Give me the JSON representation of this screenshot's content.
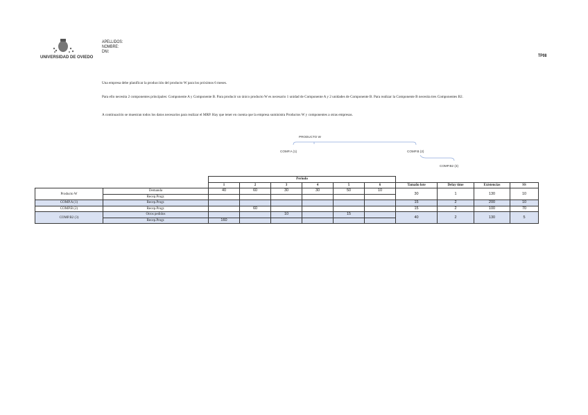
{
  "header": {
    "university": "UNIVERSIDAD DE OVIEDO",
    "apellidos": "APELLIDOS:",
    "nombre": "NOMBRE:",
    "dni": "DNI:",
    "code": "TP08"
  },
  "paragraphs": [
    "Una empresa debe planificar la producción del producto W para los próximos 6 meses.",
    "Para ello necesita 2 componentes principales: Componente A y Componente B. Para producir un único producto W es necesario 1 unidad de Componente A y 2 unidades de Componente B. Para realizar  la Componente B necesita tres Componentes B2.",
    "A continuación se muestran todos los datos necesarios para realizar el MRP. Hay que tener en cuenta que la empresa suministra Productos W y componentes a otras empresas."
  ],
  "tree": {
    "root": "PRODUCTO W",
    "a": "COMP.A (1)",
    "b": "COMP.B (2)",
    "b2": "COMP.B2 (3)"
  },
  "table": {
    "periodo": "Periodo",
    "periods": [
      "1",
      "2",
      "3",
      "4",
      "5",
      "6"
    ],
    "extra_headers": [
      "Tamaño lote",
      "Delay time",
      "Existencias",
      "SS"
    ],
    "rows": [
      {
        "item": "Producto W",
        "sub": [
          {
            "label": "Demanda",
            "values": [
              "40",
              "60",
              "30",
              "30",
              "50",
              "10"
            ]
          },
          {
            "label": "Recep.Progr.",
            "values": [
              "",
              "",
              "",
              "",
              "",
              ""
            ]
          }
        ],
        "extra": [
          "30",
          "1",
          "130",
          "10"
        ]
      },
      {
        "item": "COMP.A (1)",
        "sub": [
          {
            "label": "Recep.Progr.",
            "values": [
              "",
              "",
              "",
              "",
              "",
              ""
            ]
          }
        ],
        "extra": [
          "15",
          "2",
          "200",
          "10"
        ]
      },
      {
        "item": "COMP.B (2)",
        "sub": [
          {
            "label": "Recep.Progr.",
            "values": [
              "",
              "60",
              "",
              "",
              "",
              ""
            ]
          }
        ],
        "extra": [
          "15",
          "2",
          "100",
          "70"
        ]
      },
      {
        "item": "COMP.B2 (3)",
        "sub": [
          {
            "label": "Otros pedidos",
            "values": [
              "",
              "",
              "10",
              "",
              "15",
              ""
            ]
          },
          {
            "label": "Recep.Progr.",
            "values": [
              "160",
              "",
              "",
              "",
              "",
              ""
            ]
          }
        ],
        "extra": [
          "40",
          "2",
          "130",
          "5"
        ]
      }
    ]
  }
}
